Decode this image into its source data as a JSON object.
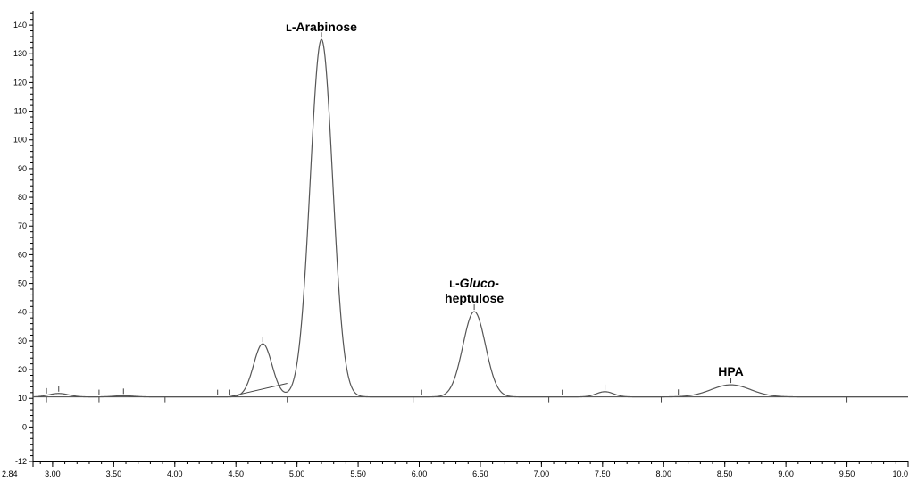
{
  "chart_data": {
    "type": "line",
    "title": "",
    "xlabel": "",
    "ylabel": "",
    "xlim": [
      2.84,
      10.0
    ],
    "ylim": [
      -12,
      145
    ],
    "x_ticks": [
      {
        "value": 2.84,
        "label": "2.84"
      },
      {
        "value": 3.0,
        "label": "3.00"
      },
      {
        "value": 3.5,
        "label": "3.50"
      },
      {
        "value": 4.0,
        "label": "4.00"
      },
      {
        "value": 4.5,
        "label": "4.50"
      },
      {
        "value": 5.0,
        "label": "5.00"
      },
      {
        "value": 5.5,
        "label": "5.50"
      },
      {
        "value": 6.0,
        "label": "6.00"
      },
      {
        "value": 6.5,
        "label": "6.50"
      },
      {
        "value": 7.0,
        "label": "7.00"
      },
      {
        "value": 7.5,
        "label": "7.50"
      },
      {
        "value": 8.0,
        "label": "8.00"
      },
      {
        "value": 8.5,
        "label": "8.50"
      },
      {
        "value": 9.0,
        "label": "9.00"
      },
      {
        "value": 9.5,
        "label": "9.50"
      },
      {
        "value": 10.0,
        "label": "10.0"
      }
    ],
    "y_ticks": [
      -12,
      0,
      10,
      20,
      30,
      40,
      50,
      60,
      70,
      80,
      90,
      100,
      110,
      120,
      130,
      140
    ],
    "baseline": 10.5,
    "series": [
      {
        "peaks": [
          {
            "center": 3.05,
            "height": 1.2,
            "width": 0.08
          },
          {
            "center": 3.58,
            "height": 0.4,
            "width": 0.08
          },
          {
            "center": 4.72,
            "height": 18.5,
            "width": 0.075
          },
          {
            "center": 5.2,
            "height": 124.5,
            "width": 0.092
          },
          {
            "center": 6.45,
            "height": 29.7,
            "width": 0.092
          },
          {
            "center": 7.52,
            "height": 1.8,
            "width": 0.07
          },
          {
            "center": 8.55,
            "height": 4.2,
            "width": 0.16
          }
        ]
      }
    ],
    "annotations": [
      {
        "x": 5.2,
        "y": 136,
        "lines": [
          [
            {
              "text": "L",
              "small": true
            },
            {
              "text": "-Arabinose"
            }
          ]
        ]
      },
      {
        "x": 6.45,
        "y": 41.5,
        "lines": [
          [
            {
              "text": "L",
              "small": true
            },
            {
              "text": "-"
            },
            {
              "text": "Gluco",
              "italic": true
            },
            {
              "text": "-"
            }
          ],
          [
            {
              "text": "heptulose"
            }
          ]
        ]
      },
      {
        "x": 8.55,
        "y": 16,
        "lines": [
          [
            {
              "text": "HPA"
            }
          ]
        ]
      }
    ],
    "integration_marks_up": [
      2.95,
      3.05,
      3.38,
      3.58,
      4.35,
      4.45,
      4.72,
      5.2,
      6.02,
      6.45,
      7.17,
      7.52,
      8.12,
      8.55
    ],
    "integration_marks_down": [
      2.95,
      3.38,
      3.92,
      4.92,
      5.95,
      7.06,
      7.98,
      9.5
    ],
    "integration_baselines": [
      [
        4.45,
        10.6,
        4.92,
        15.2
      ]
    ],
    "grid": false,
    "legend": "none"
  }
}
